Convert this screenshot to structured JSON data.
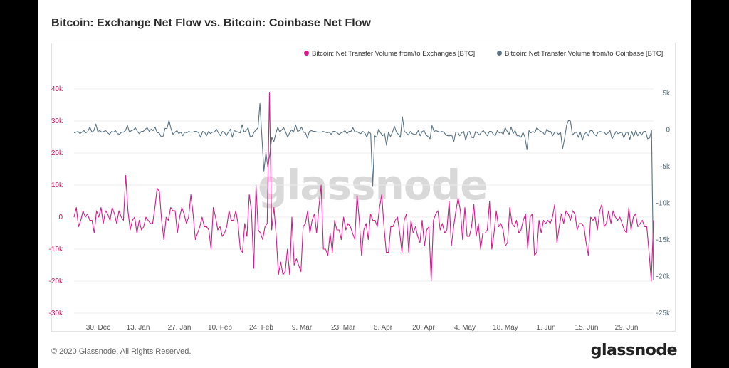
{
  "title": "Bitcoin: Exchange Net Flow vs. Bitcoin: Coinbase Net Flow",
  "footer": {
    "copyright": "© 2020 Glassnode. All Rights Reserved.",
    "logo": "glassnode"
  },
  "watermark": "glassnode",
  "colors": {
    "exchanges": "#d81b8a",
    "coinbase": "#5b7383",
    "left_axis": "#c2185b",
    "right_axis": "#546e7a"
  },
  "chart_data": {
    "type": "line",
    "x_tick_labels": [
      "30. Dec",
      "13. Jan",
      "27. Jan",
      "10. Feb",
      "24. Feb",
      "9. Mar",
      "23. Mar",
      "6. Apr",
      "20. Apr",
      "4. May",
      "18. May",
      "1. Jun",
      "15. Jun",
      "29. Jun"
    ],
    "left_axis": {
      "ticks": [
        "40k",
        "30k",
        "20k",
        "10k",
        "0",
        "-10k",
        "-20k",
        "-30k"
      ],
      "range": [
        -30000,
        40000
      ]
    },
    "right_axis": {
      "ticks": [
        "5k",
        "0",
        "-5k",
        "-10k",
        "-15k",
        "-20k",
        "-25k"
      ],
      "range": [
        -25000,
        5000
      ]
    },
    "grid": "horizontal",
    "legend_position": "top-right",
    "series": [
      {
        "name": "Bitcoin: Net Transfer Volume from/to Exchanges [BTC]",
        "axis": "left",
        "values": [
          0,
          3000,
          -3000,
          -1000,
          2000,
          0,
          1000,
          -1000,
          -1000,
          -5000,
          2000,
          0,
          3000,
          -2000,
          2000,
          1000,
          -1000,
          3000,
          1000,
          -2000,
          2000,
          0,
          -1000,
          13000,
          2000,
          -4000,
          -1000,
          0,
          -5000,
          -1000,
          -4000,
          -3000,
          0,
          -1000,
          -2000,
          -2000,
          3000,
          9000,
          8000,
          -1000,
          -7000,
          0,
          -1000,
          3000,
          2000,
          2000,
          -5000,
          0,
          3000,
          1000,
          -2000,
          0,
          7000,
          1000,
          -7000,
          -5000,
          -3000,
          0,
          -3000,
          -3000,
          -4000,
          -10000,
          3000,
          0,
          -4000,
          -3000,
          -6000,
          -5000,
          -3000,
          2000,
          -1000,
          -1000,
          2000,
          -2000,
          -10000,
          -11000,
          -2000,
          -6000,
          7000,
          2000,
          -16000,
          10000,
          -4000,
          -5000,
          -7000,
          -3000,
          -2000,
          39000,
          -4000,
          3000,
          -6000,
          -18000,
          -14000,
          -18000,
          -17000,
          -10000,
          -18000,
          0,
          -15000,
          -13000,
          -15000,
          -17000,
          -3000,
          -2000,
          2000,
          -5000,
          -1000,
          1000,
          -5000,
          3000,
          10000,
          -10000,
          -10000,
          -12000,
          -5000,
          -11000,
          -1000,
          -4000,
          -4000,
          -7000,
          0,
          -4000,
          -2000,
          -3000,
          -5000,
          -7000,
          7000,
          -1000,
          -12000,
          -4000,
          -2000,
          -7000,
          1000,
          -1000,
          -1000,
          -3000,
          3000,
          7000,
          -3000,
          -11000,
          -11000,
          -3000,
          -3000,
          -1000,
          0,
          -5000,
          -11000,
          -1000,
          1000,
          -11000,
          -1000,
          -5000,
          -3000,
          -6000,
          -8000,
          -1000,
          -9000,
          -4000,
          -3000,
          -20000,
          -1000,
          1000,
          2000,
          -4000,
          -2000,
          -5000,
          -4000,
          5000,
          -9000,
          -3000,
          2000,
          6000,
          2000,
          -7000,
          3000,
          -6000,
          -6000,
          -3000,
          4000,
          -6000,
          -2000,
          -10000,
          -5000,
          -5000,
          -4000,
          5000,
          -10000,
          -5000,
          2000,
          -3000,
          -2000,
          -4000,
          -9000,
          -8000,
          3000,
          -2000,
          -3000,
          -1000,
          -5000,
          -4000,
          -1000,
          1000,
          -10000,
          0,
          1000,
          -12000,
          -11000,
          -1000,
          -5000,
          -1000,
          -2000,
          -1000,
          -2000,
          0,
          4000,
          -8000,
          -3000,
          1000,
          -2000,
          2000,
          1000,
          -1000,
          2000,
          1000,
          -4000,
          -2000,
          -2000,
          -3000,
          -8000,
          -12000,
          0,
          -1000,
          0,
          -4000,
          2000,
          4000,
          -3000,
          -2000,
          2000,
          -2000,
          2000,
          0,
          -1000,
          0,
          -2000,
          -4000,
          -5000,
          3000,
          -4000,
          0,
          1000,
          -3000,
          -2000,
          -1000,
          -3000,
          -3000,
          -11000,
          -20000,
          -1000
        ]
      },
      {
        "name": "Bitcoin: Net Transfer Volume from/to Coinbase [BTC]",
        "axis": "right",
        "values": [
          -400,
          -300,
          -200,
          -500,
          -300,
          -100,
          -400,
          -200,
          400,
          -300,
          -100,
          800,
          -200,
          -100,
          -300,
          -200,
          -100,
          -400,
          -600,
          -200,
          -300,
          -100,
          -500,
          -600,
          -300,
          -300,
          -100,
          600,
          -300,
          -100,
          0,
          300,
          -200,
          -500,
          -200,
          -200,
          100,
          300,
          -200,
          100,
          -100,
          400,
          -400,
          -400,
          -900,
          -900,
          200,
          200,
          1300,
          200,
          -600,
          -300,
          -100,
          -500,
          -300,
          -800,
          -300,
          -400,
          -200,
          -300,
          -300,
          -200,
          -200,
          -400,
          -1000,
          -200,
          -300,
          -800,
          -200,
          -500,
          -300,
          -300,
          100,
          -400,
          -800,
          -200,
          -300,
          -800,
          -300,
          100,
          -1000,
          -100,
          -200,
          -300,
          -400,
          700,
          -300,
          -100,
          300,
          -900,
          -900,
          -300,
          0,
          300,
          3600,
          -1000,
          -5600,
          -3100,
          -5100,
          -3300,
          -1000,
          -1600,
          -500,
          400,
          -300,
          0,
          300,
          -300,
          -1000,
          -400,
          0,
          -300,
          700,
          -200,
          -100,
          400,
          -300,
          -400,
          -1100,
          -200,
          -100,
          -200,
          -200,
          -300,
          -300,
          -300,
          -200,
          -300,
          -400,
          -300,
          -600,
          -200,
          -200,
          -400,
          -600,
          -400,
          -300,
          -100,
          -500,
          -200,
          -200,
          300,
          -300,
          -200,
          -400,
          -500,
          -200,
          -400,
          -1000,
          -200,
          -500,
          -7700,
          -800,
          -1000,
          100,
          -400,
          -800,
          -500,
          -2100,
          -300,
          -900,
          -300,
          500,
          -300,
          -600,
          -1000,
          1800,
          -200,
          -400,
          -700,
          -200,
          -500,
          -600,
          -600,
          -100,
          -800,
          -200,
          -100,
          -700,
          -900,
          -1200,
          600,
          -200,
          -100,
          -200,
          -300,
          -200,
          -300,
          -700,
          -800,
          -800,
          -700,
          -1600,
          -300,
          -300,
          -800,
          -400,
          -200,
          -1400,
          -400,
          -200,
          -1000,
          -1100,
          -200,
          -400,
          -700,
          -300,
          -100,
          -500,
          -800,
          -200,
          -200,
          -600,
          -800,
          -100,
          -400,
          -300,
          -600,
          300,
          -200,
          -600,
          400,
          -500,
          -100,
          -800,
          -800,
          -1000,
          -300,
          -1000,
          -2700,
          -100,
          -400,
          -200,
          -400,
          300,
          0,
          -200,
          -300,
          -700,
          100,
          -200,
          -200,
          -800,
          -300,
          -300,
          -600,
          -300,
          -2600,
          -1200,
          600,
          1300,
          1200,
          -700,
          -400,
          -300,
          -1000,
          -300,
          -1400,
          -600,
          -300,
          -800,
          -100,
          -100,
          -600,
          -800,
          -300,
          -200,
          -300,
          -300,
          -600,
          -400,
          -100,
          -1200,
          -800,
          -200,
          -500,
          -400,
          -300,
          -1100,
          -400,
          -300,
          -1300,
          -200,
          -900,
          -100,
          -800,
          -300,
          -700,
          -200,
          -200,
          -1200,
          -1100,
          -100,
          -20500
        ]
      }
    ]
  }
}
